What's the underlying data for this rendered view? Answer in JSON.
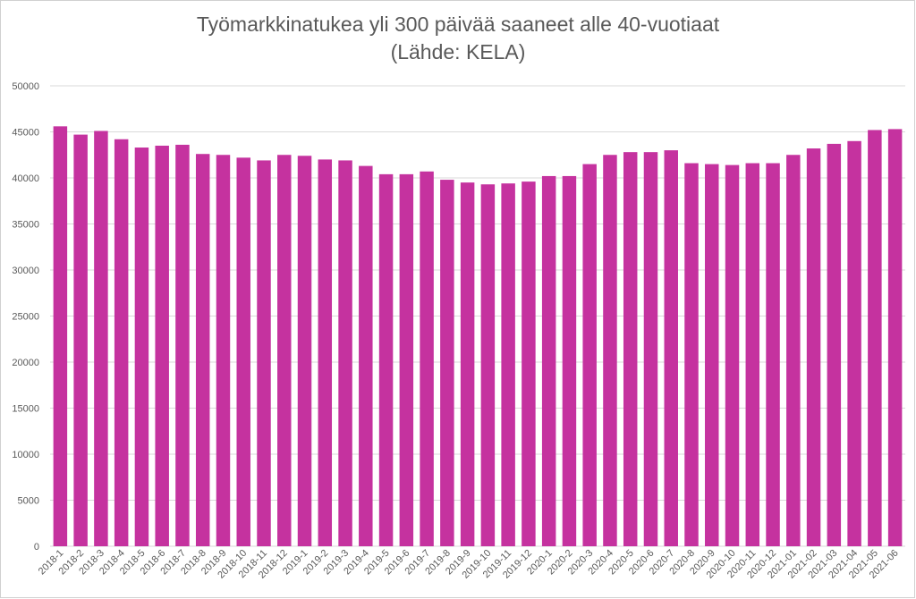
{
  "chart_data": {
    "type": "bar",
    "title": "Työmarkkinatukea yli 300 päivää saaneet alle 40-vuotiaat",
    "subtitle": "(Lähde: KELA)",
    "categories": [
      "2018-1",
      "2018-2",
      "2018-3",
      "2018-4",
      "2018-5",
      "2018-6",
      "2018-7",
      "2018-8",
      "2018-9",
      "2018-10",
      "2018-11",
      "2018-12",
      "2019-1",
      "2019-2",
      "2019-3",
      "2019-4",
      "2019-5",
      "2019-6",
      "2019-7",
      "2019-8",
      "2019-9",
      "2019-10",
      "2019-11",
      "2019-12",
      "2020-1",
      "2020-2",
      "2020-3",
      "2020-4",
      "2020-5",
      "2020-6",
      "2020-7",
      "2020-8",
      "2020-9",
      "2020-10",
      "2020-11",
      "2020-12",
      "2021-01",
      "2021-02",
      "2021-03",
      "2021-04",
      "2021-05",
      "2021-06"
    ],
    "values": [
      45600,
      44700,
      45100,
      44200,
      43300,
      43500,
      43600,
      42600,
      42500,
      42200,
      41900,
      42500,
      42400,
      42000,
      41900,
      41300,
      40400,
      40400,
      40700,
      39800,
      39500,
      39300,
      39400,
      39600,
      40200,
      40200,
      41500,
      42500,
      42800,
      42800,
      43000,
      41600,
      41500,
      41400,
      41600,
      41600,
      42500,
      43200,
      43700,
      44000,
      45200,
      45300
    ],
    "ylim": [
      0,
      50000
    ],
    "yticks": [
      0,
      5000,
      10000,
      15000,
      20000,
      25000,
      30000,
      35000,
      40000,
      45000,
      50000
    ],
    "grid": true,
    "legend": "none",
    "bar_color": "#c5329f",
    "grid_color": "#d9d9d9",
    "text_color": "#595959"
  }
}
